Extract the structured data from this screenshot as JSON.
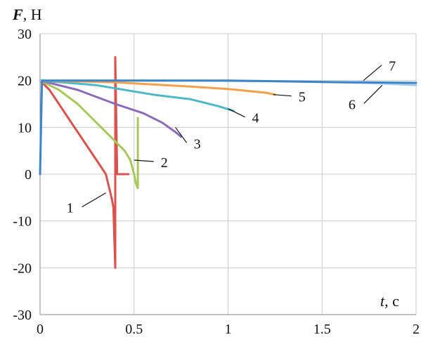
{
  "chart_data": {
    "type": "line",
    "y_axis_label": {
      "symbol": "F",
      "unit": ", Н"
    },
    "x_axis_label": {
      "symbol": "t",
      "unit": ", с"
    },
    "xlim": [
      0,
      2
    ],
    "ylim": [
      -30,
      30
    ],
    "x_ticks": [
      0,
      0.5,
      1,
      1.5,
      2
    ],
    "x_tick_labels": [
      "0",
      "0.5",
      "1",
      "1.5",
      "2"
    ],
    "y_ticks": [
      -30,
      -20,
      -10,
      0,
      10,
      20,
      30
    ],
    "y_tick_labels": [
      "-30",
      "-20",
      "-10",
      "0",
      "10",
      "20",
      "30"
    ],
    "grid": true,
    "legend": "none",
    "series": [
      {
        "name": "1",
        "color": "#d9534f",
        "points": [
          [
            0,
            20
          ],
          [
            0.05,
            18
          ],
          [
            0.1,
            15
          ],
          [
            0.15,
            12
          ],
          [
            0.2,
            9
          ],
          [
            0.25,
            6
          ],
          [
            0.3,
            3
          ],
          [
            0.35,
            0
          ],
          [
            0.38,
            -5
          ],
          [
            0.39,
            -7
          ],
          [
            0.4,
            -20
          ],
          [
            0.4,
            25
          ],
          [
            0.41,
            0
          ],
          [
            0.41,
            0
          ],
          [
            0.47,
            0
          ]
        ],
        "label_point": [
          0.35,
          -4
        ]
      },
      {
        "name": "2",
        "color": "#a8c95a",
        "points": [
          [
            0,
            20
          ],
          [
            0.1,
            18
          ],
          [
            0.2,
            15
          ],
          [
            0.3,
            11
          ],
          [
            0.4,
            7
          ],
          [
            0.45,
            5
          ],
          [
            0.48,
            3
          ],
          [
            0.5,
            0
          ],
          [
            0.51,
            -2
          ],
          [
            0.52,
            -3
          ],
          [
            0.52,
            12
          ]
        ],
        "label_point": [
          0.5,
          3
        ]
      },
      {
        "name": "3",
        "color": "#8b6bb8",
        "points": [
          [
            0,
            20
          ],
          [
            0.2,
            18
          ],
          [
            0.4,
            15
          ],
          [
            0.55,
            13
          ],
          [
            0.65,
            11
          ],
          [
            0.72,
            9
          ],
          [
            0.75,
            8
          ]
        ],
        "label_point": [
          0.72,
          10
        ]
      },
      {
        "name": "4",
        "color": "#4cb8c8",
        "points": [
          [
            0,
            20
          ],
          [
            0.3,
            19
          ],
          [
            0.6,
            17
          ],
          [
            0.8,
            16
          ],
          [
            0.95,
            14.5
          ],
          [
            1.03,
            13.5
          ]
        ],
        "label_point": [
          1.0,
          14
        ]
      },
      {
        "name": "5",
        "color": "#f5a04a",
        "points": [
          [
            0,
            20
          ],
          [
            0.4,
            19.6
          ],
          [
            0.8,
            18.7
          ],
          [
            1.0,
            18.2
          ],
          [
            1.2,
            17.4
          ],
          [
            1.25,
            17
          ]
        ],
        "label_point": [
          1.24,
          17
        ]
      },
      {
        "name": "6",
        "color": "#a9c9e8",
        "points": [
          [
            0,
            20
          ],
          [
            0.8,
            20
          ],
          [
            1.4,
            19.8
          ],
          [
            1.8,
            19.4
          ],
          [
            2,
            19
          ]
        ],
        "label_point": [
          1.82,
          19
        ]
      },
      {
        "name": "7",
        "color": "#3a86c8",
        "points": [
          [
            0,
            0
          ],
          [
            0.01,
            20
          ],
          [
            1.0,
            20
          ],
          [
            1.5,
            19.7
          ],
          [
            2,
            19.5
          ]
        ],
        "label_point": [
          1.72,
          20
        ]
      }
    ]
  }
}
